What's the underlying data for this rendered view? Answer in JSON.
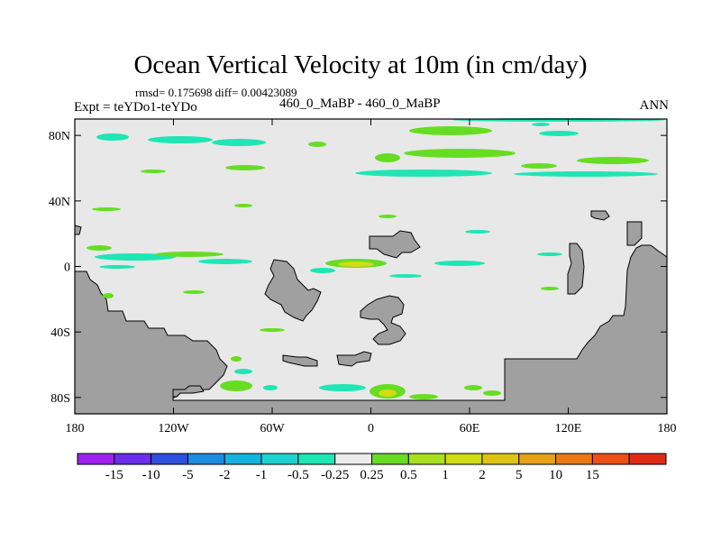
{
  "chart_data": {
    "type": "contour-map",
    "title": "Ocean Vertical Velocity at 10m (in cm/day)",
    "stats": "rmsd= 0.175698 diff= 0.00423089",
    "experiment": "Expt = teYDo1-teYDo",
    "period": "460_0_MaBP - 460_0_MaBP",
    "season": "ANN",
    "xlim": [
      -180,
      180
    ],
    "ylim": [
      -90,
      90
    ],
    "x_ticks": [
      {
        "value": -180,
        "label": "180"
      },
      {
        "value": -120,
        "label": "120W"
      },
      {
        "value": -60,
        "label": "60W"
      },
      {
        "value": 0,
        "label": "0"
      },
      {
        "value": 60,
        "label": "60E"
      },
      {
        "value": 120,
        "label": "120E"
      },
      {
        "value": 180,
        "label": "180"
      }
    ],
    "y_ticks": [
      {
        "value": 80,
        "label": "80N"
      },
      {
        "value": 40,
        "label": "40N"
      },
      {
        "value": 0,
        "label": "0"
      },
      {
        "value": -40,
        "label": "40S"
      },
      {
        "value": -80,
        "label": "80S"
      }
    ],
    "colorbar": {
      "colors": [
        "#a020f0",
        "#6a2ee8",
        "#2e4fe0",
        "#1e8ce0",
        "#14b2e0",
        "#1ed2d2",
        "#1ee6b4",
        "#ececec",
        "#66dd22",
        "#a8e020",
        "#d2dc14",
        "#e0c414",
        "#e8a014",
        "#ec7814",
        "#ec5014",
        "#e02c14"
      ],
      "labels": [
        "-15",
        "-10",
        "-5",
        "-2",
        "-1",
        "-0.5",
        "-0.25",
        "0.25",
        "0.5",
        "1",
        "2",
        "5",
        "10",
        "15"
      ]
    },
    "land_color": "#a0a0a0",
    "ocean_color": "#e8e8e8"
  }
}
